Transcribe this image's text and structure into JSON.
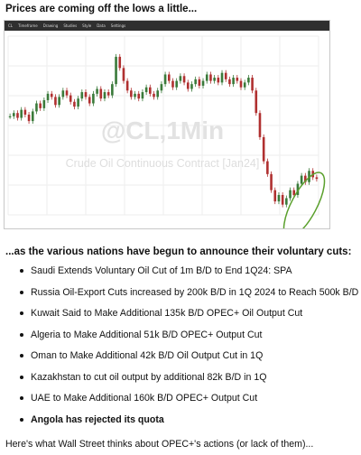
{
  "heading1": "Prices are coming off the lows a little...",
  "chart": {
    "toolbar": [
      "CL",
      "Timeframe",
      "Drawing",
      "Studies",
      "Style",
      "Data",
      "Settings"
    ],
    "watermark_symbol": "@CL,1Min",
    "watermark_name": "Crude Oil Continuous Contract [Jan24]",
    "highlight_color": "#5aa02c",
    "up_color": "#3a7a3a",
    "down_color": "#b03030"
  },
  "chart_data": {
    "type": "line",
    "title": "",
    "xlabel": "",
    "ylabel": "",
    "series": [
      {
        "values": [
          0.58,
          0.6,
          0.57,
          0.62,
          0.59,
          0.55,
          0.61,
          0.66,
          0.63,
          0.68,
          0.72,
          0.7,
          0.65,
          0.7,
          0.74,
          0.71,
          0.67,
          0.64,
          0.69,
          0.73,
          0.7,
          0.66,
          0.72,
          0.75,
          0.69,
          0.73,
          0.71,
          0.78,
          0.95,
          0.88,
          0.8,
          0.74,
          0.7,
          0.72,
          0.69,
          0.73,
          0.76,
          0.72,
          0.7,
          0.74,
          0.78,
          0.84,
          0.8,
          0.76,
          0.8,
          0.83,
          0.79,
          0.75,
          0.78,
          0.81,
          0.77,
          0.8,
          0.84,
          0.8,
          0.82,
          0.79,
          0.85,
          0.81,
          0.78,
          0.82,
          0.8,
          0.76,
          0.79,
          0.82,
          0.74,
          0.6,
          0.45,
          0.3,
          0.22,
          0.12,
          0.05,
          0.09,
          0.03,
          0.07,
          0.12,
          0.09,
          0.16,
          0.21,
          0.17,
          0.24,
          0.2,
          0.19
        ]
      }
    ]
  },
  "heading2": "...as the various nations have begun to announce their voluntary cuts:",
  "cuts": [
    "Saudi Extends Voluntary Oil Cut of 1m B/D to End 1Q24: SPA",
    "Russia Oil-Export Cuts increased by 200k B/D in 1Q 2024 to Reach 500k B/D",
    "Kuwait Said to Make Additional 135k B/D OPEC+ Oil Output Cut",
    "Algeria to Make Additional 51k B/D OPEC+ Output Cut",
    "Oman to Make Additional 42k B/D Oil Output Cut in 1Q",
    "Kazakhstan to cut oil output by additional 82k B/D in 1Q",
    "UAE to Make Additional 160k B/D OPEC+ Output Cut",
    "Angola has rejected its quota"
  ],
  "footer": "Here's what Wall Street thinks about OPEC+'s actions (or lack of them)..."
}
